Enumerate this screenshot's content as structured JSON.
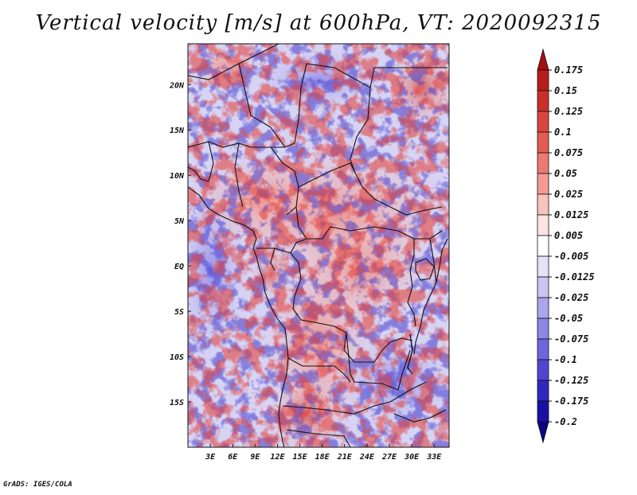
{
  "title": "Vertical velocity [m/s] at 600hPa, VT: 2020092315",
  "credit": "GrADS: IGES/COLA",
  "map": {
    "lon_range": [
      0,
      35
    ],
    "lat_range": [
      -20,
      24.5
    ],
    "lon_ticks": [
      {
        "value": 3,
        "label": "3E"
      },
      {
        "value": 6,
        "label": "6E"
      },
      {
        "value": 9,
        "label": "9E"
      },
      {
        "value": 12,
        "label": "12E"
      },
      {
        "value": 15,
        "label": "15E"
      },
      {
        "value": 18,
        "label": "18E"
      },
      {
        "value": 21,
        "label": "21E"
      },
      {
        "value": 24,
        "label": "24E"
      },
      {
        "value": 27,
        "label": "27E"
      },
      {
        "value": 30,
        "label": "30E"
      },
      {
        "value": 33,
        "label": "33E"
      }
    ],
    "lat_ticks": [
      {
        "value": 20,
        "label": "20N"
      },
      {
        "value": 15,
        "label": "15N"
      },
      {
        "value": 10,
        "label": "10N"
      },
      {
        "value": 5,
        "label": "5N"
      },
      {
        "value": 0,
        "label": "EQ"
      },
      {
        "value": -5,
        "label": "5S"
      },
      {
        "value": -10,
        "label": "10S"
      },
      {
        "value": -15,
        "label": "15S"
      }
    ]
  },
  "colorbar": {
    "levels": [
      "0.175",
      "0.15",
      "0.125",
      "0.1",
      "0.075",
      "0.05",
      "0.025",
      "0.0125",
      "0.005",
      "-0.005",
      "-0.0125",
      "-0.025",
      "-0.05",
      "-0.075",
      "-0.1",
      "-0.125",
      "-0.175",
      "-0.2"
    ],
    "colors": [
      "#a50f15",
      "#b91c1c",
      "#cb2f2a",
      "#d9453d",
      "#e35d55",
      "#ea7a72",
      "#f19b94",
      "#f7c3bd",
      "#fce5e1",
      "#ffffff",
      "#e4e2f8",
      "#c8c5f2",
      "#aaa6ec",
      "#8c86e4",
      "#6e66dc",
      "#4f46d0",
      "#3127c0",
      "#1a10a6",
      "#0b0485"
    ]
  }
}
